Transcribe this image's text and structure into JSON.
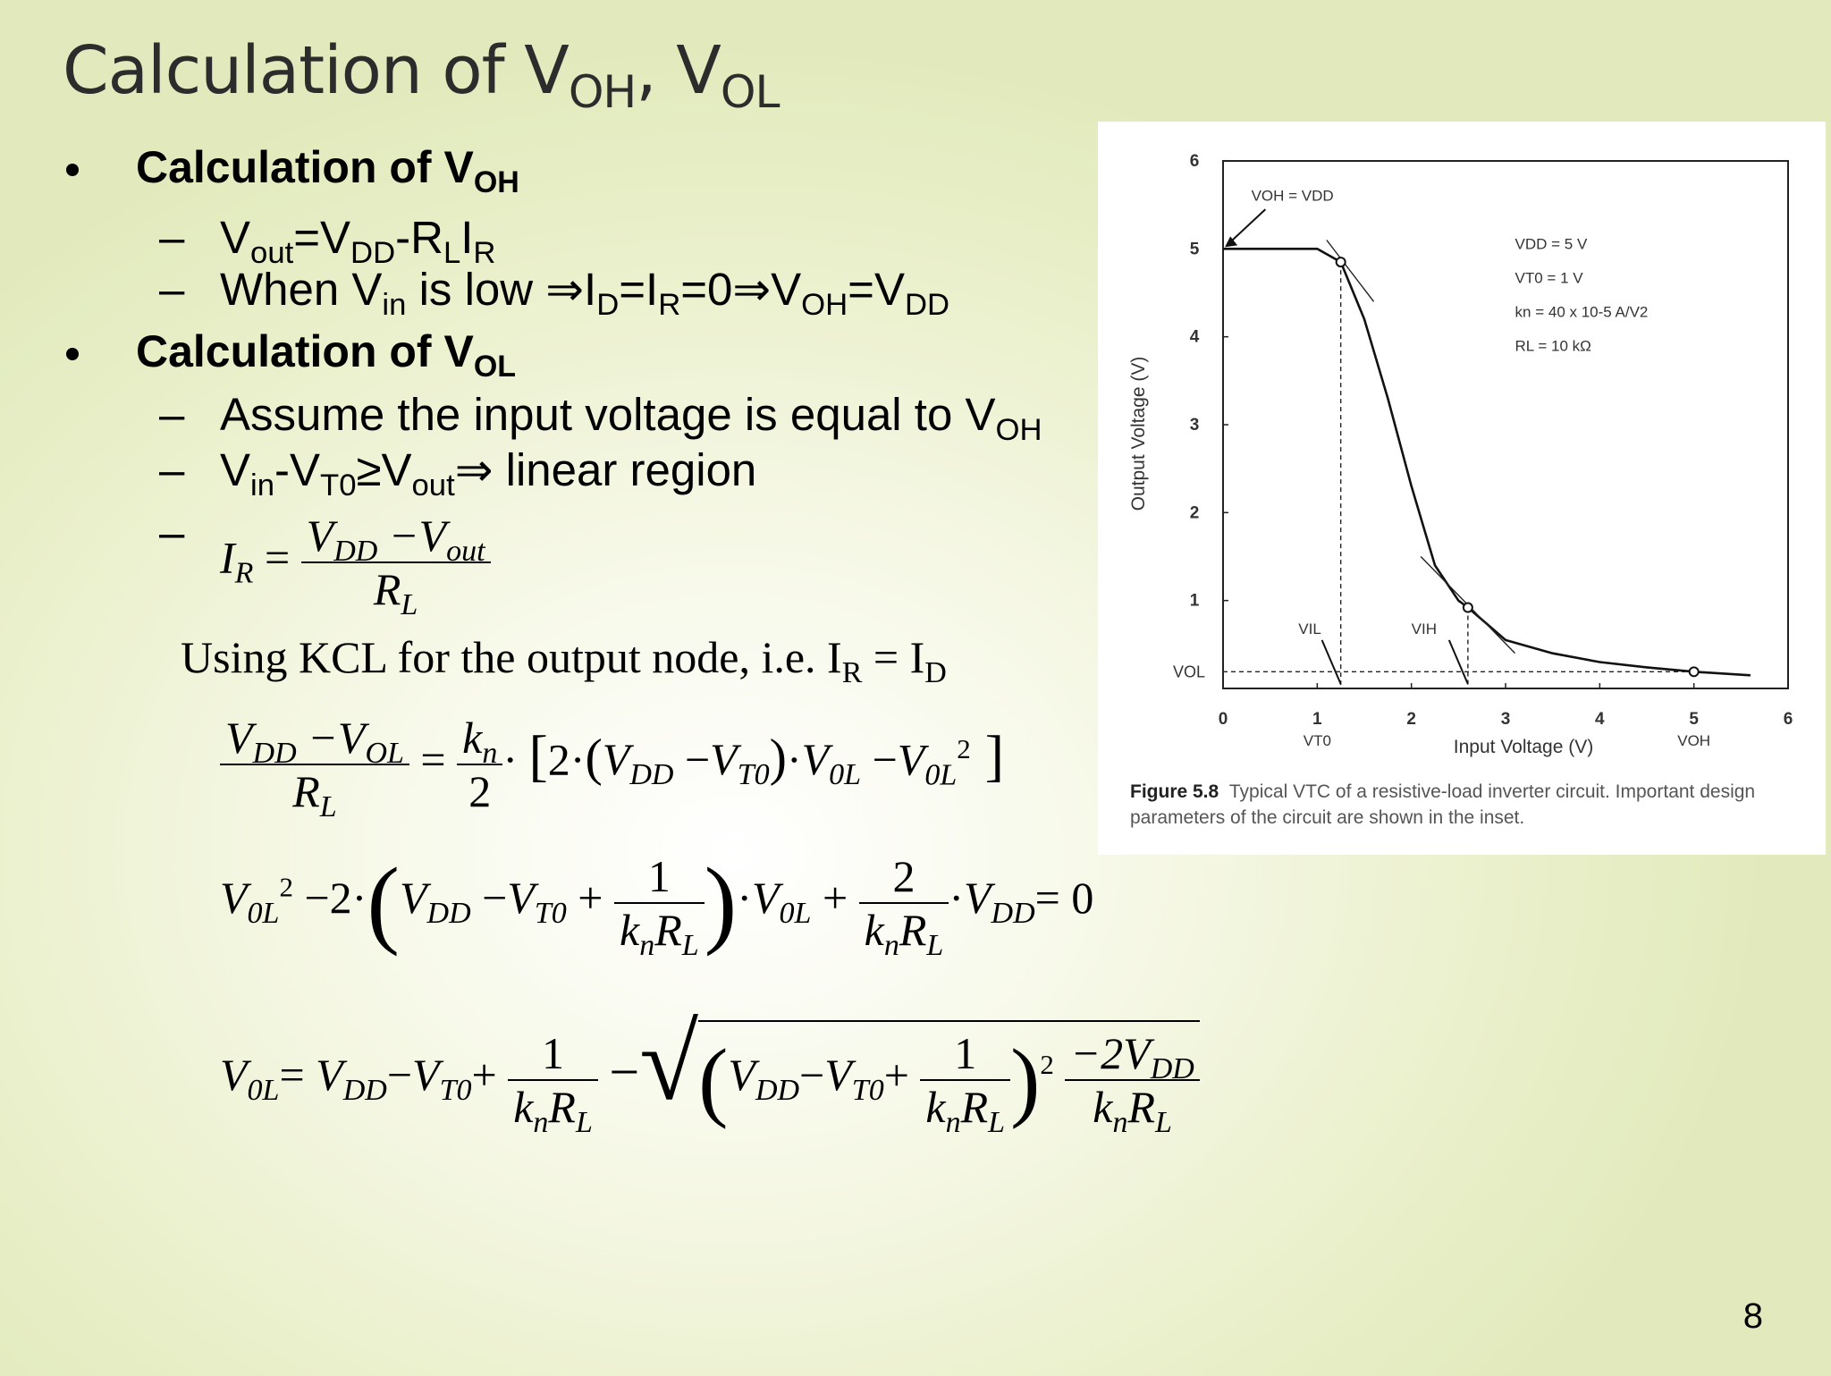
{
  "title": {
    "main": "Calculation of V",
    "sub1": "OH",
    "sep": ", V",
    "sub2": "OL"
  },
  "bullet1": {
    "text": "Calculation of V",
    "sub": "OH"
  },
  "b1_item1": {
    "v": "V",
    "out": "out",
    "eq": "=V",
    "dd": "DD",
    "minus": "-R",
    "l": "L",
    "i": "I",
    "r": "R"
  },
  "b1_item2": {
    "a": "When V",
    "in": "in",
    "b": " is low ⇒I",
    "d": "D",
    "c": "=I",
    "r": "R",
    "e": "=0⇒V",
    "oh": "OH",
    "f": "=V",
    "dd": "DD"
  },
  "bullet2": {
    "text": "Calculation of V",
    "sub": "OL"
  },
  "b2_item1": {
    "text": "Assume the input voltage is equal to V",
    "sub": "OH"
  },
  "b2_item2": {
    "a": "V",
    "in": "in",
    "b": "-V",
    "t0": "T0",
    "c": "≥V",
    "out": "out",
    "d": "⇒ linear region"
  },
  "dash": "–",
  "kcl": {
    "text": "Using KCL for the output node, i.e. I",
    "r": "R",
    "eq": " = I",
    "d": "D"
  },
  "page_number": "8",
  "figure": {
    "caption_label": "Figure 5.8",
    "caption_text": "Typical VTC of a resistive-load inverter circuit. Important design parameters of the circuit are shown in the inset.",
    "xlabel": "Input Voltage (V)",
    "ylabel": "Output Voltage (V)",
    "params": [
      "VDD = 5 V",
      "VT0 = 1 V",
      "kn = 40 x 10-5 A/V2",
      "RL = 10 kΩ"
    ],
    "labels": {
      "voh_vdd": "VOH = VDD",
      "vil": "VIL",
      "vih": "VIH",
      "vol": "VOL",
      "vt0": "VT0",
      "voh": "VOH"
    }
  },
  "chart_data": {
    "type": "line",
    "title": "",
    "xlabel": "Input Voltage (V)",
    "ylabel": "Output Voltage (V)",
    "xlim": [
      0,
      6
    ],
    "ylim": [
      0,
      6
    ],
    "x_ticks": [
      "0",
      "1",
      "2",
      "3",
      "4",
      "5",
      "6"
    ],
    "y_ticks": [
      "1",
      "2",
      "3",
      "4",
      "5",
      "6"
    ],
    "series": [
      {
        "x": [
          0,
          1.0,
          1.25,
          1.5,
          1.75,
          2.0,
          2.25,
          2.5,
          2.6,
          3.0,
          3.5,
          4.0,
          4.5,
          5.0,
          5.6
        ],
        "y": [
          5.0,
          5.0,
          4.85,
          4.2,
          3.3,
          2.3,
          1.4,
          1.0,
          0.92,
          0.55,
          0.4,
          0.3,
          0.24,
          0.19,
          0.15
        ]
      }
    ],
    "markers": [
      {
        "label": "VIL",
        "x": 1.25,
        "y": 4.85
      },
      {
        "label": "VIH",
        "x": 2.6,
        "y": 0.92
      },
      {
        "label": "VOL",
        "x": 5.0,
        "y": 0.19
      }
    ],
    "vol_level": 0.19,
    "grid": false
  }
}
